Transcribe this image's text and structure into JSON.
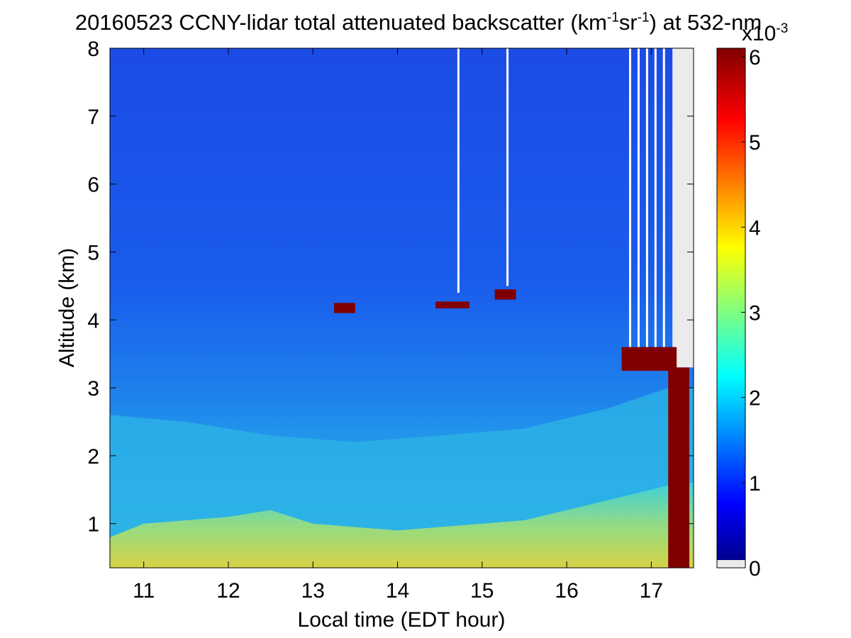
{
  "chart_data": {
    "type": "heatmap",
    "title": {
      "prefix": "20160523 CCNY-lidar total attenuated backscatter (km",
      "sup1": "-1",
      "mid": "sr",
      "sup2": "-1",
      "suffix": ") at 532-nm"
    },
    "xlabel": "Local time (EDT hour)",
    "ylabel": "Altitude (km)",
    "xlim": [
      10.6,
      17.5
    ],
    "ylim": [
      0.35,
      8
    ],
    "x_ticks": [
      "11",
      "12",
      "13",
      "14",
      "15",
      "16",
      "17"
    ],
    "x_tick_values": [
      11,
      12,
      13,
      14,
      15,
      16,
      17
    ],
    "y_ticks": [
      "1",
      "2",
      "3",
      "4",
      "5",
      "6",
      "7",
      "8"
    ],
    "y_tick_values": [
      1,
      2,
      3,
      4,
      5,
      6,
      7,
      8
    ],
    "colorbar": {
      "ticks": [
        "0",
        "1",
        "2",
        "3",
        "4",
        "5",
        "6"
      ],
      "tick_values": [
        0,
        1,
        2,
        3,
        4,
        5,
        6
      ],
      "range": [
        0,
        6
      ],
      "multiplier_base": "x10",
      "multiplier_exp": "-3",
      "colormap": "jet",
      "nodata_color": "#ebebeb"
    },
    "colors": {
      "background_high": "#1a4ee8",
      "aerosol_layer": "#2bb7e6",
      "near_surface": "#e9d633",
      "cloud": "#800000",
      "missing": "#ffffff"
    },
    "features": {
      "boundary_layer_top_km": [
        [
          10.6,
          0.8
        ],
        [
          11.0,
          1.0
        ],
        [
          11.5,
          1.05
        ],
        [
          12.0,
          1.1
        ],
        [
          12.5,
          1.2
        ],
        [
          13.0,
          1.0
        ],
        [
          13.5,
          0.95
        ],
        [
          14.0,
          0.9
        ],
        [
          14.5,
          0.95
        ],
        [
          15.0,
          1.0
        ],
        [
          15.5,
          1.05
        ],
        [
          16.0,
          1.2
        ],
        [
          16.5,
          1.35
        ],
        [
          17.0,
          1.5
        ],
        [
          17.3,
          1.6
        ]
      ],
      "aerosol_layer_top_km": [
        [
          10.6,
          2.6
        ],
        [
          11.5,
          2.5
        ],
        [
          12.5,
          2.3
        ],
        [
          13.5,
          2.2
        ],
        [
          14.5,
          2.3
        ],
        [
          15.5,
          2.4
        ],
        [
          16.5,
          2.7
        ],
        [
          17.2,
          3.0
        ]
      ],
      "clouds": [
        {
          "x0": 13.25,
          "x1": 13.5,
          "y0": 4.1,
          "y1": 4.25
        },
        {
          "x0": 14.45,
          "x1": 14.85,
          "y0": 4.17,
          "y1": 4.27
        },
        {
          "x0": 15.15,
          "x1": 15.4,
          "y0": 4.3,
          "y1": 4.45
        },
        {
          "x0": 16.65,
          "x1": 17.3,
          "y0": 3.25,
          "y1": 3.6
        },
        {
          "x0": 17.2,
          "x1": 17.45,
          "y0": 0.35,
          "y1": 3.3
        }
      ],
      "missing_data_strips": [
        {
          "x": 14.72,
          "y0": 4.4,
          "y1": 8
        },
        {
          "x": 15.3,
          "y0": 4.5,
          "y1": 8
        },
        {
          "x": 16.75,
          "y0": 3.6,
          "y1": 8
        },
        {
          "x": 16.85,
          "y0": 3.6,
          "y1": 8
        },
        {
          "x": 16.95,
          "y0": 3.6,
          "y1": 8
        },
        {
          "x": 17.05,
          "y0": 3.6,
          "y1": 8
        },
        {
          "x": 17.15,
          "y0": 3.6,
          "y1": 8
        }
      ],
      "nodata_region": {
        "x0": 17.25,
        "x1": 17.5,
        "y0": 3.3,
        "y1": 8
      }
    }
  }
}
